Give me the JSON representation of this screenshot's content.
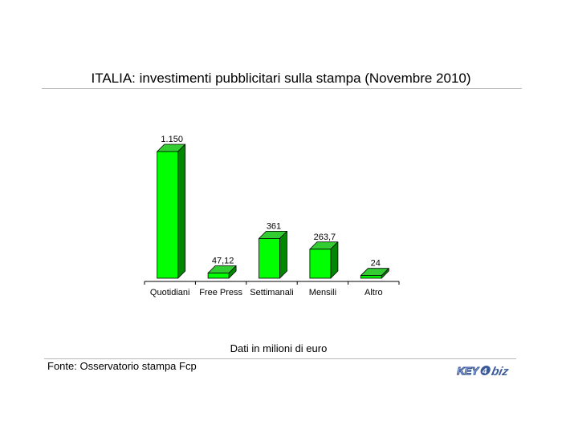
{
  "page": {
    "title": "ITALIA: investimenti pubblicitari sulla stampa (Novembre 2010)",
    "units_note": "Dati in milioni di euro",
    "source": "Fonte: Osservatorio stampa Fcp",
    "logo_text": "KEY4biz"
  },
  "chart_data": {
    "type": "bar",
    "title": "",
    "xlabel": "",
    "ylabel": "",
    "categories": [
      "Quotidiani",
      "Free Press",
      "Settimanali",
      "Mensili",
      "Altro"
    ],
    "values": [
      1150,
      47.12,
      361,
      263.7,
      24
    ],
    "data_labels": [
      "1.150",
      "47,12",
      "361",
      "263,7",
      "24"
    ],
    "ylim": [
      0,
      1150
    ],
    "grid": false,
    "legend": "none",
    "style": "3d",
    "colors": {
      "bar_front": "#00ff00",
      "bar_side": "#008800",
      "bar_top": "#33cc33",
      "axis": "#000000"
    }
  }
}
